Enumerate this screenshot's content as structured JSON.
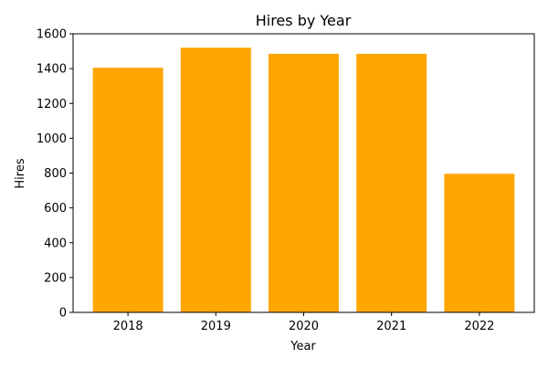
{
  "chart_data": {
    "type": "bar",
    "title": "Hires by Year",
    "xlabel": "Year",
    "ylabel": "Hires",
    "categories": [
      "2018",
      "2019",
      "2020",
      "2021",
      "2022"
    ],
    "values": [
      1405,
      1520,
      1485,
      1485,
      796
    ],
    "ylim": [
      0,
      1600
    ],
    "yticks": [
      0,
      200,
      400,
      600,
      800,
      1000,
      1200,
      1400,
      1600
    ],
    "grid": false,
    "bar_color": "#ffa500"
  }
}
